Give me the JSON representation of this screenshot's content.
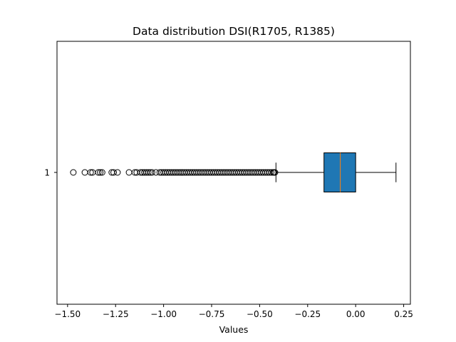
{
  "chart_data": {
    "type": "boxplot",
    "orientation": "horizontal",
    "title": "Data distribution DSI(R1705, R1385)",
    "xlabel": "Values",
    "ylabel": "",
    "xlim": [
      -1.555,
      0.285
    ],
    "x_ticks": [
      -1.5,
      -1.25,
      -1.0,
      -0.75,
      -0.5,
      -0.25,
      0.0,
      0.25
    ],
    "x_tick_labels": [
      "−1.50",
      "−1.25",
      "−1.00",
      "−0.75",
      "−0.50",
      "−0.25",
      "0.00",
      "0.25"
    ],
    "y_tick_labels": [
      "1"
    ],
    "grid": false,
    "box": {
      "category": "1",
      "whisker_low": -0.415,
      "q1": -0.165,
      "median": -0.08,
      "q3": 0.0,
      "whisker_high": 0.21
    },
    "outliers": [
      -1.47,
      -1.41,
      -1.38,
      -1.37,
      -1.34,
      -1.33,
      -1.32,
      -1.27,
      -1.26,
      -1.24,
      -1.18,
      -1.15,
      -1.14,
      -1.12,
      -1.11,
      -1.1,
      -1.09,
      -1.08,
      -1.07,
      -1.06,
      -1.04,
      -1.02,
      -1.01,
      -1.0,
      -0.99,
      -0.98,
      -0.97,
      -0.96,
      -0.95,
      -0.94,
      -0.93,
      -0.92,
      -0.91,
      -0.9,
      -0.89,
      -0.88,
      -0.87,
      -0.86,
      -0.85,
      -0.84,
      -0.83,
      -0.82,
      -0.81,
      -0.8,
      -0.79,
      -0.78,
      -0.77,
      -0.76,
      -0.75,
      -0.74,
      -0.73,
      -0.72,
      -0.71,
      -0.7,
      -0.69,
      -0.68,
      -0.67,
      -0.66,
      -0.65,
      -0.64,
      -0.63,
      -0.62,
      -0.61,
      -0.6,
      -0.59,
      -0.58,
      -0.57,
      -0.56,
      -0.55,
      -0.54,
      -0.53,
      -0.52,
      -0.51,
      -0.5,
      -0.49,
      -0.48,
      -0.47,
      -0.46,
      -0.45,
      -0.44,
      -0.43,
      -0.425,
      -0.42
    ],
    "colors": {
      "box_fill": "#1f77b4",
      "median": "#ff7f0e",
      "lines": "#000000"
    }
  }
}
